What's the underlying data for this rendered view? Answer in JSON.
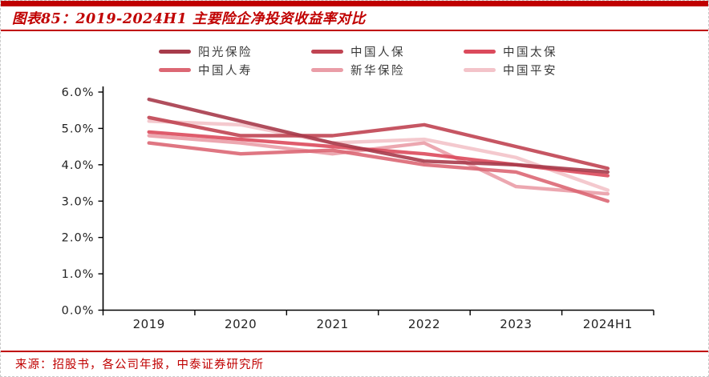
{
  "header": {
    "title": "图表85：2019-2024H1 主要险企净投资收益率对比",
    "accent_color": "#C00000"
  },
  "chart_data": {
    "type": "line",
    "title": "2019-2024H1 主要险企净投资收益率对比",
    "categories": [
      "2019",
      "2020",
      "2021",
      "2022",
      "2023",
      "2024H1"
    ],
    "series": [
      {
        "name": "阳光保险",
        "color": "#A73B4B",
        "values": [
          5.8,
          5.2,
          4.6,
          4.1,
          4.0,
          3.8
        ]
      },
      {
        "name": "中国人保",
        "color": "#C04452",
        "values": [
          5.3,
          4.8,
          4.8,
          5.1,
          4.5,
          3.9
        ]
      },
      {
        "name": "中国太保",
        "color": "#DB4A5C",
        "values": [
          4.9,
          4.7,
          4.5,
          4.3,
          4.0,
          3.7
        ]
      },
      {
        "name": "中国人寿",
        "color": "#DC6774",
        "values": [
          4.6,
          4.3,
          4.4,
          4.0,
          3.8,
          3.0
        ]
      },
      {
        "name": "新华保险",
        "color": "#EA9DA7",
        "values": [
          4.8,
          4.6,
          4.3,
          4.6,
          3.4,
          3.2
        ]
      },
      {
        "name": "中国平安",
        "color": "#F3C3C9",
        "values": [
          5.2,
          5.1,
          4.6,
          4.7,
          4.2,
          3.3
        ]
      }
    ],
    "xlabel": "",
    "ylabel": "",
    "ylim": [
      0,
      6
    ],
    "ytick_step": 1,
    "ytick_labels": [
      "0.0%",
      "1.0%",
      "2.0%",
      "3.0%",
      "4.0%",
      "5.0%",
      "6.0%"
    ],
    "legend_position": "top",
    "grid": false
  },
  "footer": {
    "source": "来源：招股书，各公司年报，中泰证券研究所"
  }
}
